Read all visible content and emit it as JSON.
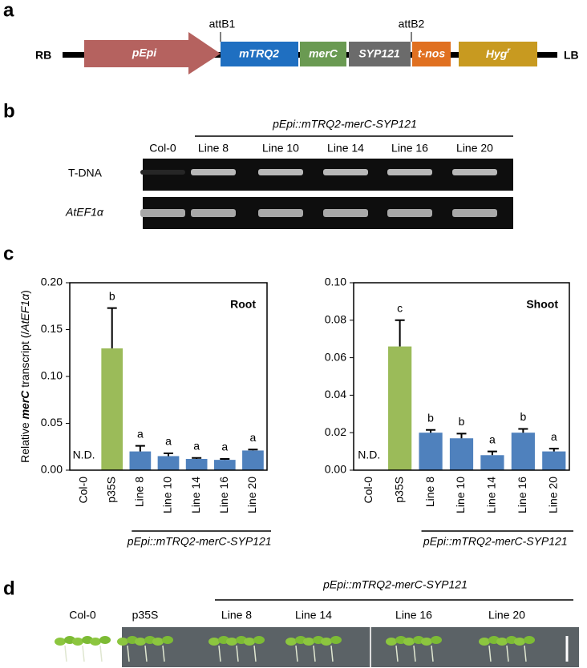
{
  "panel_a": {
    "letter": "a",
    "rb": "RB",
    "lb": "LB",
    "attb1": "attB1",
    "attb2": "attB2",
    "elements": [
      "pEpi",
      "mTRQ2",
      "merC",
      "SYP121",
      "t-nos"
    ],
    "hyg": {
      "text": "Hyg",
      "superscript": "r"
    }
  },
  "panel_b": {
    "letter": "b",
    "construct": "pEpi::mTRQ2-merC-SYP121",
    "lanes": [
      "Col-0",
      "Line 8",
      "Line 10",
      "Line 14",
      "Line 16",
      "Line 20"
    ],
    "rows": [
      "T-DNA",
      "AtEF1α"
    ]
  },
  "panel_c": {
    "letter": "c"
  },
  "chart_data": [
    {
      "type": "bar",
      "title": "Root",
      "categories": [
        "Col-0",
        "p35S",
        "Line 8",
        "Line 10",
        "Line 14",
        "Line 16",
        "Line 20"
      ],
      "values": [
        null,
        0.13,
        0.02,
        0.015,
        0.012,
        0.011,
        0.021
      ],
      "errors": [
        null,
        0.043,
        0.006,
        0.003,
        0.001,
        0.001,
        0.001
      ],
      "letters": [
        null,
        "b",
        "a",
        "a",
        "a",
        "a",
        "a"
      ],
      "annotation": "N.D.",
      "colors": [
        "#4f81bd",
        "#9bbb59",
        "#4f81bd",
        "#4f81bd",
        "#4f81bd",
        "#4f81bd",
        "#4f81bd"
      ],
      "ylim": [
        0,
        0.2
      ],
      "yticks": [
        {
          "value": 0,
          "label": "0.00"
        },
        {
          "value": 0.05,
          "label": "0.05"
        },
        {
          "value": 0.1,
          "label": "0.10"
        },
        {
          "value": 0.15,
          "label": "0.15"
        },
        {
          "value": 0.2,
          "label": "0.20"
        }
      ],
      "ylabel": [
        "Relative ",
        "merC",
        " transcript (/",
        "AtEF1α",
        ")"
      ],
      "group_label": "pEpi::mTRQ2-merC-SYP121"
    },
    {
      "type": "bar",
      "title": "Shoot",
      "categories": [
        "Col-0",
        "p35S",
        "Line 8",
        "Line 10",
        "Line 14",
        "Line 16",
        "Line 20"
      ],
      "values": [
        null,
        0.066,
        0.02,
        0.017,
        0.008,
        0.02,
        0.01
      ],
      "errors": [
        null,
        0.014,
        0.0015,
        0.0025,
        0.002,
        0.002,
        0.0015
      ],
      "letters": [
        null,
        "c",
        "b",
        "b",
        "a",
        "b",
        "a"
      ],
      "annotation": "N.D.",
      "colors": [
        "#4f81bd",
        "#9bbb59",
        "#4f81bd",
        "#4f81bd",
        "#4f81bd",
        "#4f81bd",
        "#4f81bd"
      ],
      "ylim": [
        0,
        0.1
      ],
      "yticks": [
        {
          "value": 0,
          "label": "0.00"
        },
        {
          "value": 0.02,
          "label": "0.02"
        },
        {
          "value": 0.04,
          "label": "0.04"
        },
        {
          "value": 0.06,
          "label": "0.06"
        },
        {
          "value": 0.08,
          "label": "0.08"
        },
        {
          "value": 0.1,
          "label": "0.10"
        }
      ],
      "group_label": "pEpi::mTRQ2-merC-SYP121"
    }
  ],
  "panel_d": {
    "letter": "d",
    "construct": "pEpi::mTRQ2-merC-SYP121",
    "labels": [
      "Col-0",
      "p35S",
      "Line 8",
      "Line 14",
      "Line 16",
      "Line 20"
    ]
  }
}
